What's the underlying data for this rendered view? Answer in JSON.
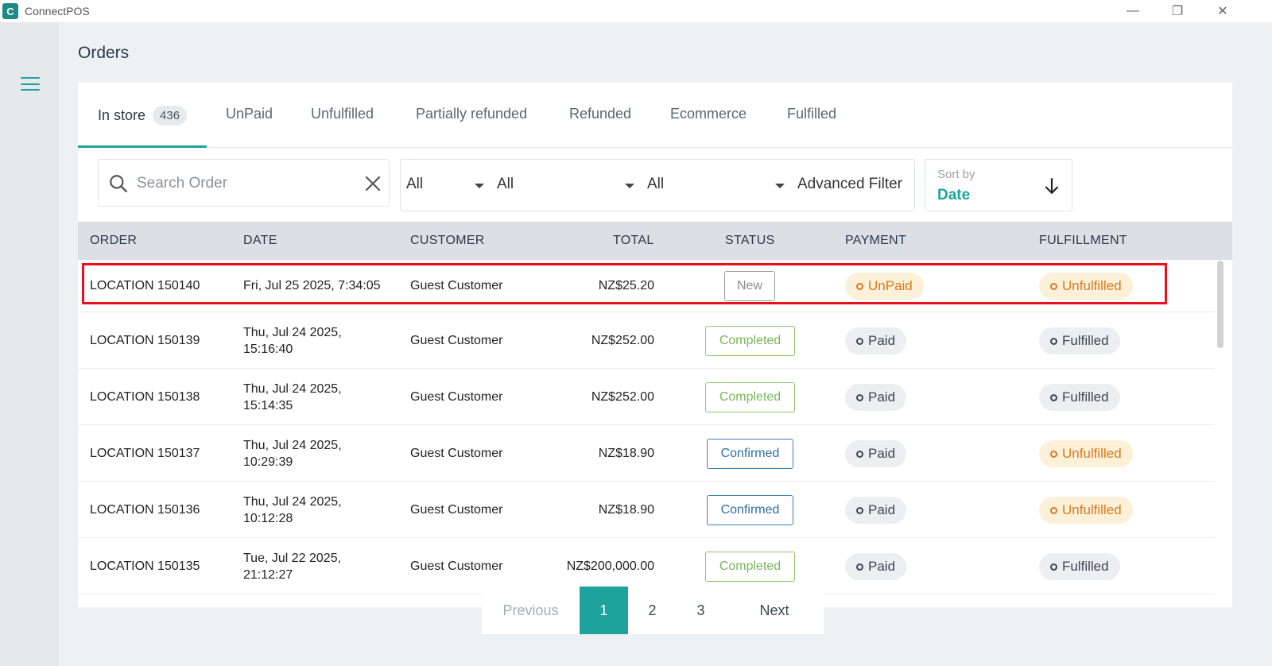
{
  "app": {
    "title": "ConnectPOS",
    "logo_letter": "C"
  },
  "window_controls": {
    "minimize": "—",
    "restore": "❐",
    "close": "✕"
  },
  "page": {
    "title": "Orders"
  },
  "tabs": [
    {
      "label": "In store",
      "count": "436",
      "active": true
    },
    {
      "label": "UnPaid"
    },
    {
      "label": "Unfulfilled"
    },
    {
      "label": "Partially refunded"
    },
    {
      "label": "Refunded"
    },
    {
      "label": "Ecommerce"
    },
    {
      "label": "Fulfilled"
    }
  ],
  "search": {
    "placeholder": "Search Order",
    "value": ""
  },
  "filters": {
    "first": "All",
    "second": "All",
    "third": "All",
    "advanced_label": "Advanced Filter"
  },
  "sort": {
    "label": "Sort by",
    "value": "Date",
    "direction_icon": "arrow-down-icon"
  },
  "table": {
    "headers": {
      "order": "ORDER",
      "date": "DATE",
      "customer": "CUSTOMER",
      "total": "TOTAL",
      "status": "STATUS",
      "payment": "PAYMENT",
      "fulfillment": "FULFILLMENT"
    },
    "rows": [
      {
        "order": "LOCATION 150140",
        "date_line1": "Fri, Jul 25 2025, 7:34:05",
        "date_line2": "",
        "customer": "Guest Customer",
        "total": "NZ$25.20",
        "status": "New",
        "payment": "UnPaid",
        "fulfillment": "Unfulfilled"
      },
      {
        "order": "LOCATION 150139",
        "date_line1": "Thu, Jul 24 2025,",
        "date_line2": "15:16:40",
        "customer": "Guest Customer",
        "total": "NZ$252.00",
        "status": "Completed",
        "payment": "Paid",
        "fulfillment": "Fulfilled"
      },
      {
        "order": "LOCATION 150138",
        "date_line1": "Thu, Jul 24 2025,",
        "date_line2": "15:14:35",
        "customer": "Guest Customer",
        "total": "NZ$252.00",
        "status": "Completed",
        "payment": "Paid",
        "fulfillment": "Fulfilled"
      },
      {
        "order": "LOCATION 150137",
        "date_line1": "Thu, Jul 24 2025,",
        "date_line2": "10:29:39",
        "customer": "Guest Customer",
        "total": "NZ$18.90",
        "status": "Confirmed",
        "payment": "Paid",
        "fulfillment": "Unfulfilled"
      },
      {
        "order": "LOCATION 150136",
        "date_line1": "Thu, Jul 24 2025,",
        "date_line2": "10:12:28",
        "customer": "Guest Customer",
        "total": "NZ$18.90",
        "status": "Confirmed",
        "payment": "Paid",
        "fulfillment": "Unfulfilled"
      },
      {
        "order": "LOCATION 150135",
        "date_line1": "Tue, Jul 22 2025,",
        "date_line2": "21:12:27",
        "customer": "Guest Customer",
        "total": "NZ$200,000.00",
        "status": "Completed",
        "payment": "Paid",
        "fulfillment": "Fulfilled"
      }
    ]
  },
  "pagination": {
    "previous": "Previous",
    "pages": [
      "1",
      "2",
      "3"
    ],
    "current": "1",
    "next": "Next"
  },
  "colors": {
    "accent": "#1da39c",
    "highlight": "#e8101f",
    "warning_text": "#d97a1c",
    "warning_bg": "#fdf0d8",
    "completed": "#78b65a",
    "confirmed": "#2e6fa6"
  }
}
